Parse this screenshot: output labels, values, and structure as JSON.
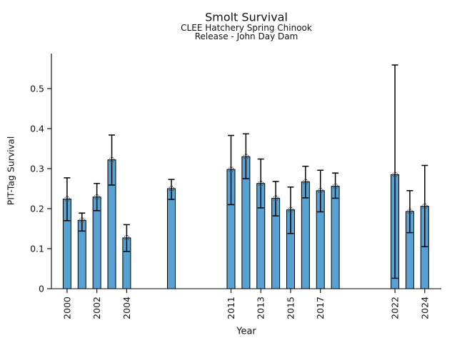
{
  "chart_data": {
    "type": "bar",
    "title": "Smolt Survival",
    "subtitle": [
      "CLEE Hatchery Spring Chinook",
      "Release - John Day Dam"
    ],
    "xlabel": "Year",
    "ylabel": "PIT-Tag Survival",
    "categories": [
      2000,
      2001,
      2002,
      2003,
      2004,
      2007,
      2011,
      2012,
      2013,
      2014,
      2015,
      2016,
      2017,
      2018,
      2022,
      2023,
      2024
    ],
    "values": [
      0.224,
      0.171,
      0.229,
      0.322,
      0.127,
      0.25,
      0.298,
      0.33,
      0.263,
      0.226,
      0.197,
      0.267,
      0.245,
      0.256,
      0.285,
      0.193,
      0.206
    ],
    "ci_low": [
      0.17,
      0.144,
      0.195,
      0.259,
      0.093,
      0.223,
      0.21,
      0.275,
      0.202,
      0.182,
      0.138,
      0.227,
      0.192,
      0.226,
      0.026,
      0.14,
      0.105
    ],
    "ci_high": [
      0.277,
      0.189,
      0.263,
      0.384,
      0.16,
      0.273,
      0.383,
      0.387,
      0.324,
      0.268,
      0.254,
      0.306,
      0.296,
      0.289,
      0.559,
      0.245,
      0.308
    ],
    "xticks": [
      2000,
      2002,
      2004,
      2011,
      2013,
      2015,
      2017,
      2022,
      2024
    ],
    "yticks": [
      0,
      0.1,
      0.2,
      0.3,
      0.4,
      0.5
    ],
    "ytick_labels": [
      "0",
      "0.1",
      "0.2",
      "0.3",
      "0.4",
      "0.5"
    ],
    "xlim": [
      1998.95,
      2025.11
    ],
    "ylim": [
      0,
      0.5875
    ],
    "grid": false,
    "legend": null,
    "xtick_rotation": 90,
    "error_caps": true,
    "marker": "open-circle",
    "bar_color": "#58A1D3",
    "bar_edge_color": "#000000",
    "error_color": "#000000",
    "marker_edge_color": "#3c3c3c"
  }
}
